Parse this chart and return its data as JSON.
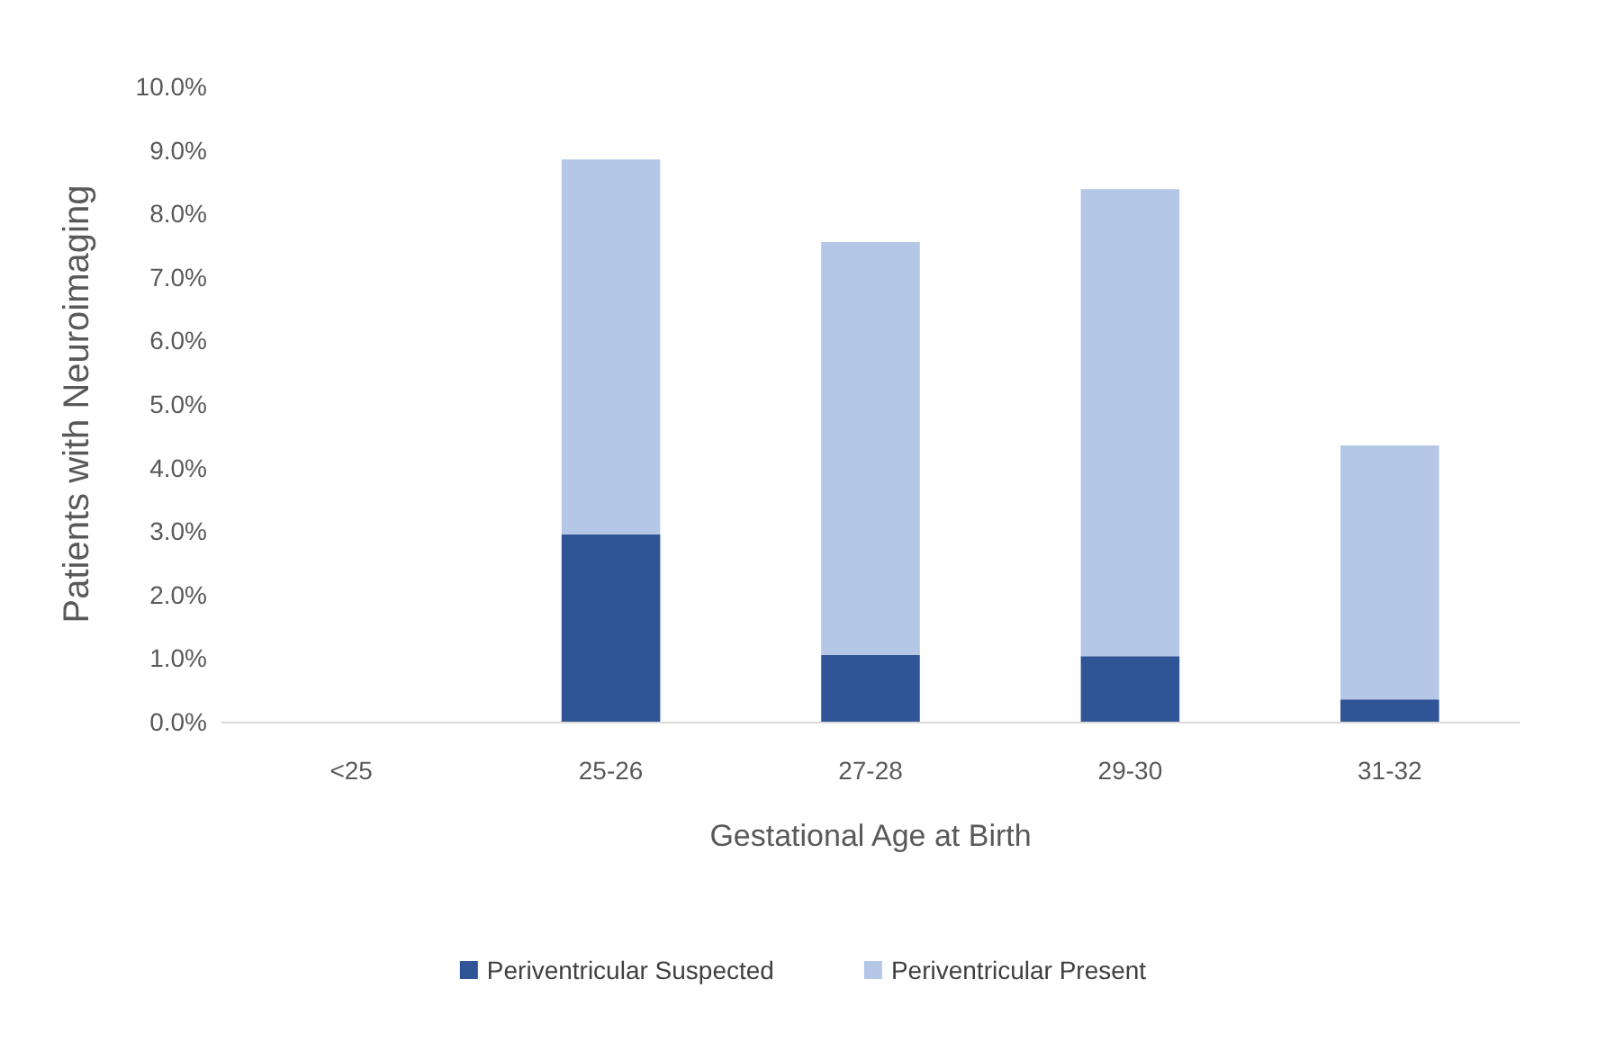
{
  "chart_data": {
    "type": "bar",
    "stacked": true,
    "xlabel": "Gestational Age at Birth",
    "ylabel": "Patients with Neuroimaging",
    "categories": [
      "<25",
      "25-26",
      "27-28",
      "29-30",
      "31-32"
    ],
    "series": [
      {
        "name": "Periventricular Suspected",
        "color": "#2f5597",
        "values": [
          0,
          2.95,
          1.05,
          1.03,
          0.35
        ]
      },
      {
        "name": "Periventricular Present",
        "color": "#b4c7e7",
        "values": [
          0,
          5.9,
          6.5,
          7.35,
          4.0
        ]
      }
    ],
    "ylim": [
      0,
      10
    ],
    "yticks": [
      {
        "value": 0,
        "label": "0.0%"
      },
      {
        "value": 1,
        "label": "1.0%"
      },
      {
        "value": 2,
        "label": "2.0%"
      },
      {
        "value": 3,
        "label": "3.0%"
      },
      {
        "value": 4,
        "label": "4.0%"
      },
      {
        "value": 5,
        "label": "5.0%"
      },
      {
        "value": 6,
        "label": "6.0%"
      },
      {
        "value": 7,
        "label": "7.0%"
      },
      {
        "value": 8,
        "label": "8.0%"
      },
      {
        "value": 9,
        "label": "9.0%"
      },
      {
        "value": 10,
        "label": "10.0%"
      }
    ],
    "grid": false,
    "legend": "bottom"
  }
}
